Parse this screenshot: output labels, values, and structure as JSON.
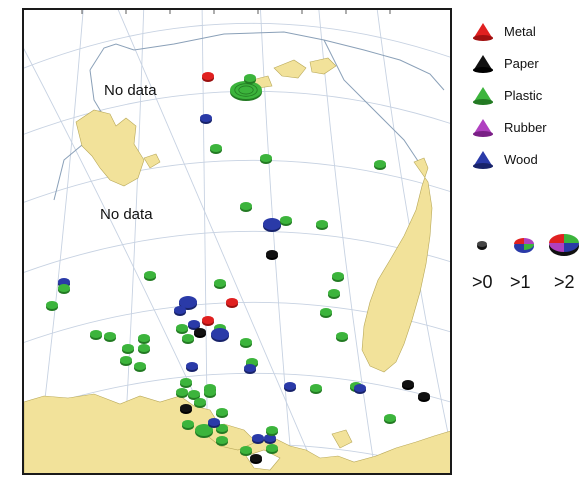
{
  "map": {
    "no_data_labels": [
      "No data",
      "No data"
    ]
  },
  "legend": {
    "items": [
      {
        "label": "Metal",
        "color": "#e02020",
        "icon": "red-cone-icon"
      },
      {
        "label": "Paper",
        "color": "#111111",
        "icon": "black-cone-icon"
      },
      {
        "label": "Plastic",
        "color": "#3cb43c",
        "icon": "green-cone-icon"
      },
      {
        "label": "Rubber",
        "color": "#b040c0",
        "icon": "magenta-cone-icon"
      },
      {
        "label": "Wood",
        "color": "#2a3aa8",
        "icon": "blue-cone-icon"
      }
    ]
  },
  "size_legend": {
    "labels": [
      ">0",
      ">1",
      ">2"
    ]
  },
  "colors": {
    "land": "#f2e29a",
    "coast": "#8aa0b8",
    "grid": "#c7d2e2",
    "metal": "#e02020",
    "paper": "#111111",
    "plastic": "#3cb43c",
    "rubber": "#b040c0",
    "wood": "#2a3aa8"
  }
}
